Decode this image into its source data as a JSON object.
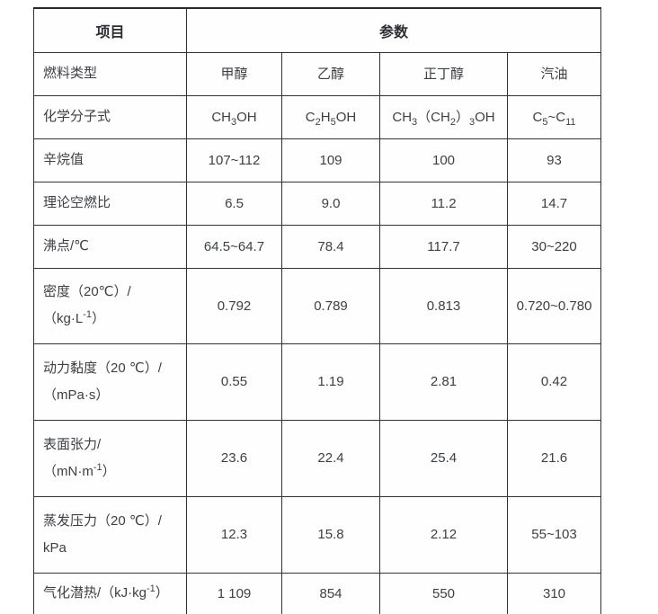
{
  "colors": {
    "background": "#ffffff",
    "border": "#303236",
    "border_top_rule": "#26282c",
    "text": "#3c3f44",
    "header_text": "#2c2e33"
  },
  "table": {
    "header": {
      "item_label": "项目",
      "params_label": "参数"
    },
    "rows": [
      {
        "label": "燃料类型",
        "values": [
          "甲醇",
          "乙醇",
          "正丁醇",
          "汽油"
        ]
      },
      {
        "label": "化学分子式",
        "values": [
          "CH<sub>3</sub>OH",
          "C<sub>2</sub>H<sub>5</sub>OH",
          "CH<sub>3</sub>（CH<sub>2</sub>）<sub>3</sub>OH",
          "C<sub>5</sub>~C<sub>11</sub>"
        ]
      },
      {
        "label": "辛烷值",
        "values": [
          "107~112",
          "109",
          "100",
          "93"
        ]
      },
      {
        "label": "理论空燃比",
        "values": [
          "6.5",
          "9.0",
          "11.2",
          "14.7"
        ]
      },
      {
        "label": "沸点/℃",
        "values": [
          "64.5~64.7",
          "78.4",
          "117.7",
          "30~220"
        ]
      },
      {
        "label": "密度（20℃）/<br>（kg·L<sup>-1</sup>）",
        "values": [
          "0.792",
          "0.789",
          "0.813",
          "0.720~0.780"
        ]
      },
      {
        "label": "动力黏度（20 ℃）/<br>（mPa·s）",
        "values": [
          "0.55",
          "1.19",
          "2.81",
          "0.42"
        ]
      },
      {
        "label": "表面张力/<br>（mN·m<sup>-1</sup>）",
        "values": [
          "23.6",
          "22.4",
          "25.4",
          "21.6"
        ]
      },
      {
        "label": "蒸发压力（20 ℃）/<br>kPa",
        "values": [
          "12.3",
          "15.8",
          "2.12",
          "55~103"
        ]
      },
      {
        "label": "气化潜热/（kJ·kg<sup>-1</sup>）",
        "values": [
          "1 109",
          "854",
          "550",
          "310"
        ]
      }
    ]
  }
}
